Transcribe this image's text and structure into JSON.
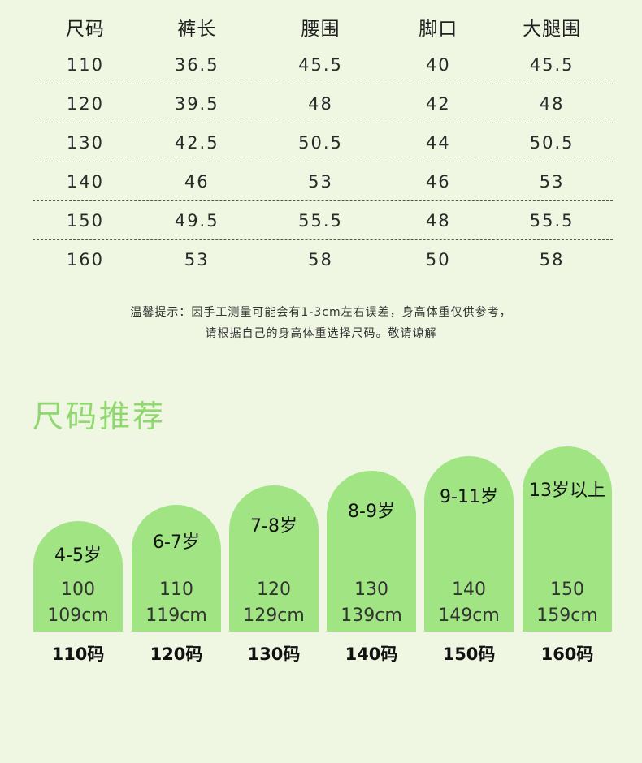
{
  "table": {
    "headers": [
      "尺码",
      "裤长",
      "腰围",
      "脚口",
      "大腿围"
    ],
    "rows": [
      [
        "110",
        "36.5",
        "45.5",
        "40",
        "45.5"
      ],
      [
        "120",
        "39.5",
        "48",
        "42",
        "48"
      ],
      [
        "130",
        "42.5",
        "50.5",
        "44",
        "50.5"
      ],
      [
        "140",
        "46",
        "53",
        "46",
        "53"
      ],
      [
        "150",
        "49.5",
        "55.5",
        "48",
        "55.5"
      ],
      [
        "160",
        "53",
        "58",
        "50",
        "58"
      ]
    ]
  },
  "notice": {
    "line1": "温馨提示：因手工测量可能会有1-3cm左右误差，身高体重仅供参考，",
    "line2": "请根据自己的身高体重选择尺码。敬请谅解"
  },
  "recommend": {
    "title": "尺码推荐",
    "cards": [
      {
        "age": "4-5岁",
        "range1": "100",
        "range2": "109cm",
        "size": "110码"
      },
      {
        "age": "6-7岁",
        "range1": "110",
        "range2": "119cm",
        "size": "120码"
      },
      {
        "age": "7-8岁",
        "range1": "120",
        "range2": "129cm",
        "size": "130码"
      },
      {
        "age": "8-9岁",
        "range1": "130",
        "range2": "139cm",
        "size": "140码"
      },
      {
        "age": "9-11岁",
        "range1": "140",
        "range2": "149cm",
        "size": "150码"
      },
      {
        "age": "13岁以上",
        "range1": "150",
        "range2": "159cm",
        "size": "160码"
      }
    ]
  },
  "colors": {
    "background": "#eff7e3",
    "card": "#a1e484",
    "title": "#8fd870"
  }
}
